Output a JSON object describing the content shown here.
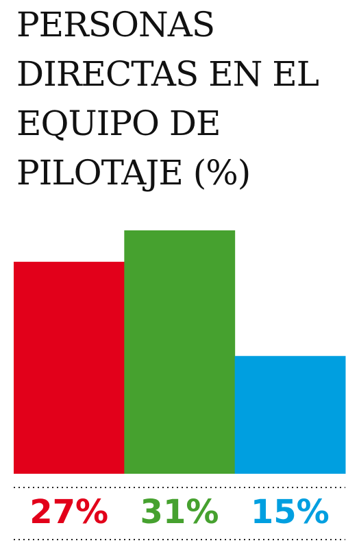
{
  "chart_data": {
    "type": "bar",
    "title": "PERSONAS DIRECTAS EN EL EQUIPO DE PILOTAJE (%)",
    "values": [
      27,
      31,
      15
    ],
    "value_labels": [
      "27%",
      "31%",
      "15%"
    ],
    "colors": [
      "#e2001a",
      "#46a12f",
      "#009fe0"
    ]
  }
}
